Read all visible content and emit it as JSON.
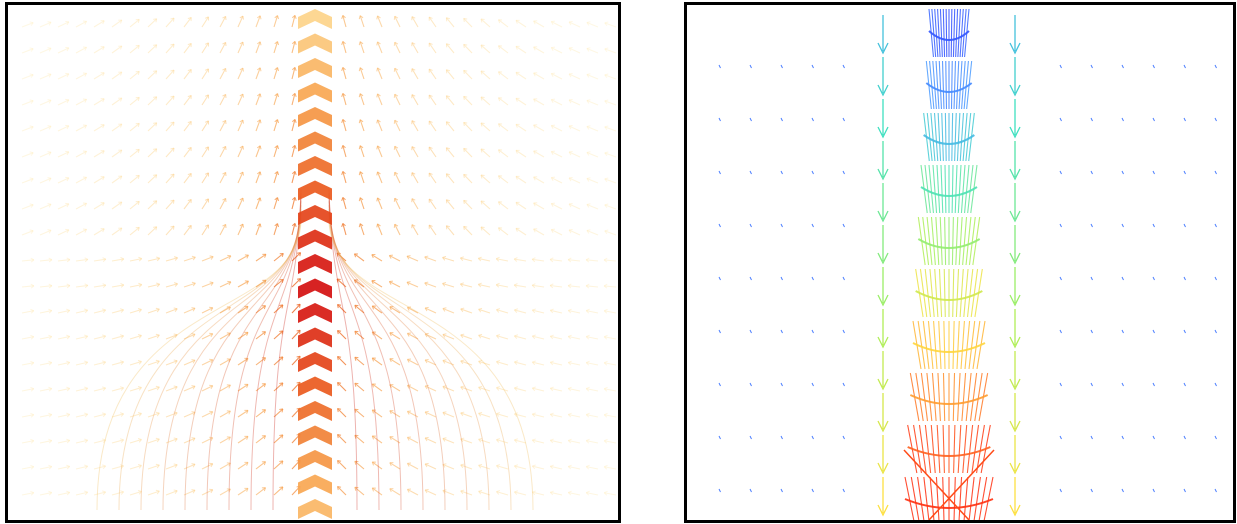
{
  "figure": {
    "panels": [
      {
        "id": "left",
        "kind": "vector-field",
        "description_colors": [
          "#fff7c8",
          "#fdd48a",
          "#f7a04a",
          "#ea5a1e",
          "#d41010"
        ],
        "streak_colors": {
          "low": "#f0c060",
          "high": "#c81010"
        },
        "arrow_style": "chevron"
      },
      {
        "id": "right",
        "kind": "vector-field",
        "colormap": [
          "#2f4cff",
          "#4a9bff",
          "#3fe0c0",
          "#a8f05a",
          "#ffe040",
          "#ff8a2a",
          "#ff3010"
        ],
        "background_arrow_color": "#4a7dff",
        "arrow_style": "line"
      }
    ]
  }
}
